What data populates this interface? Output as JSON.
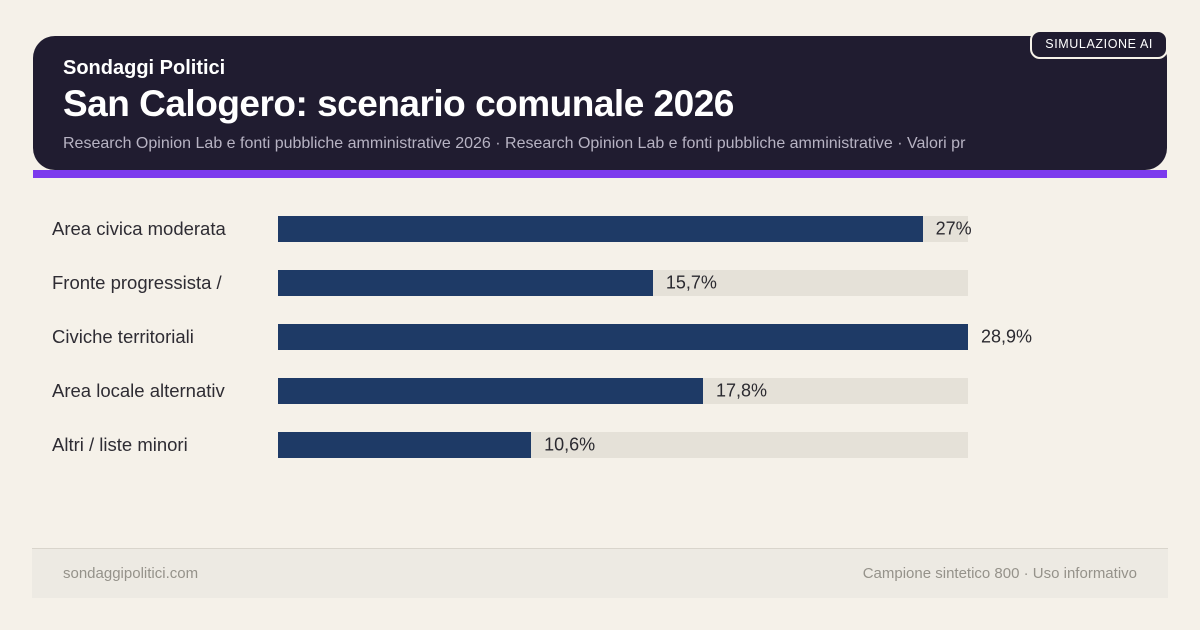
{
  "badge": {
    "label": "SIMULAZIONE AI"
  },
  "header": {
    "kicker": "Sondaggi Politici",
    "title": "San Calogero: scenario comunale 2026",
    "subtitle": "Research Opinion Lab e fonti pubbliche amministrative 2026 · Research Opinion Lab e fonti pubbliche amministrative · Valori pr"
  },
  "chart_data": {
    "type": "bar",
    "orientation": "horizontal",
    "categories": [
      "Area civica moderata",
      "Fronte progressista /",
      "Civiche territoriali",
      "Area locale alternativ",
      "Altri / liste minori"
    ],
    "values": [
      27,
      15.7,
      28.9,
      17.8,
      10.6
    ],
    "value_labels": [
      "27%",
      "15,7%",
      "28,9%",
      "17,8%",
      "10,6%"
    ],
    "xlim": [
      0,
      28.9
    ],
    "grid": false,
    "legend": false,
    "bar_color": "#1e3a66",
    "track_color": "#e5e1d8"
  },
  "footer": {
    "left": "sondaggipolitici.com",
    "right": "Campione sintetico 800 · Uso informativo"
  },
  "colors": {
    "page_bg": "#f5f1e9",
    "card_bg": "#201c30",
    "accent": "#7c3aed",
    "bar": "#1e3a66",
    "track": "#e5e1d8"
  }
}
